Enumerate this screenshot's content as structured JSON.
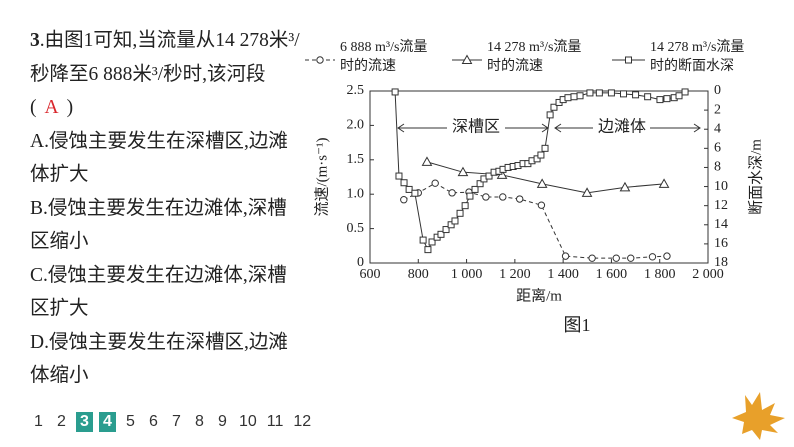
{
  "question": {
    "number": "3",
    "stem_before": ".由图1可知,当流量从14 278米³/秒降至6 888米³/秒时,该河段(",
    "answer": "A",
    "stem_after": ")",
    "options": [
      "A.侵蚀主要发生在深槽区,边滩体扩大",
      "B.侵蚀主要发生在边滩体,深槽区缩小",
      "C.侵蚀主要发生在边滩体,深槽区扩大",
      "D.侵蚀主要发生在深槽区,边滩体缩小"
    ]
  },
  "nav": [
    "1",
    "2",
    "3",
    "4",
    "5",
    "6",
    "7",
    "8",
    "9",
    "10",
    "11",
    "12"
  ],
  "chart_data": {
    "type": "line",
    "caption": "图1",
    "x_label": "距离/m",
    "y_label": "流速/(m·s⁻¹)",
    "y2_label": "断面水深/m",
    "annotations": [
      "深槽区",
      "边滩体"
    ],
    "xlim": [
      600,
      2000
    ],
    "xticks": [
      600,
      800,
      {
        "value": 1000,
        "label": "1 000"
      },
      {
        "value": 1200,
        "label": "1 200"
      },
      {
        "value": 1400,
        "label": "1 400"
      },
      {
        "value": 1600,
        "label": "1 600"
      },
      {
        "value": 1800,
        "label": "1 800"
      },
      {
        "value": 2000,
        "label": "2 000"
      }
    ],
    "ylim": [
      0,
      2.5
    ],
    "yticks": [
      0,
      0.5,
      {
        "value": 1,
        "label": "1.0"
      },
      1.5,
      {
        "value": 2,
        "label": "2.0"
      },
      2.5
    ],
    "y2lim": [
      18,
      0
    ],
    "y2ticks": [
      0,
      2,
      4,
      6,
      8,
      10,
      12,
      14,
      16,
      18
    ],
    "series": [
      {
        "name": "6 888 m³/s流量\n时的流速",
        "color": "#333333",
        "marker": "circle",
        "dashed": true,
        "x": [
          740,
          800,
          870,
          940,
          1010,
          1080,
          1150,
          1220,
          1310,
          1410,
          1520,
          1620,
          1680,
          1770,
          1830
        ],
        "values": [
          0.92,
          1.02,
          1.16,
          1.02,
          1.03,
          0.96,
          0.96,
          0.93,
          0.84,
          0.1,
          0.07,
          0.07,
          0.07,
          0.09,
          0.1
        ]
      },
      {
        "name": "14 278 m³/s流量\n时的流速",
        "color": "#333333",
        "marker": "triangle",
        "dashed": false,
        "x": [
          836,
          985,
          1147,
          1313,
          1499,
          1656,
          1818
        ],
        "values": [
          1.47,
          1.32,
          1.28,
          1.15,
          1.02,
          1.1,
          1.15
        ]
      },
      {
        "name": "14 278 m³/s流量\n时的断面水深",
        "color": "#333333",
        "marker": "square",
        "dashed": false,
        "axis": "y2",
        "x": [
          704,
          720,
          741,
          762,
          786,
          820,
          840,
          857,
          878,
          894,
          915,
          936,
          952,
          973,
          994,
          1014,
          1035,
          1056,
          1072,
          1093,
          1114,
          1134,
          1151,
          1172,
          1193,
          1213,
          1234,
          1254,
          1271,
          1292,
          1308,
          1325,
          1346,
          1362,
          1383,
          1400,
          1420,
          1445,
          1470,
          1511,
          1550,
          1600,
          1650,
          1700,
          1750,
          1801,
          1830,
          1860,
          1880,
          1905
        ],
        "values": [
          0.1,
          8.9,
          9.6,
          10.3,
          10.7,
          15.6,
          16.6,
          15.8,
          15.3,
          15.0,
          14.5,
          14.0,
          13.6,
          12.8,
          12.0,
          11.0,
          10.3,
          9.7,
          9.2,
          8.9,
          8.5,
          8.4,
          8.2,
          8.0,
          7.9,
          7.8,
          7.6,
          7.6,
          7.3,
          7.1,
          6.7,
          6.0,
          2.5,
          1.7,
          1.2,
          0.9,
          0.7,
          0.6,
          0.5,
          0.2,
          0.2,
          0.2,
          0.3,
          0.4,
          0.6,
          0.9,
          0.8,
          0.7,
          0.5,
          0.1
        ]
      }
    ]
  }
}
